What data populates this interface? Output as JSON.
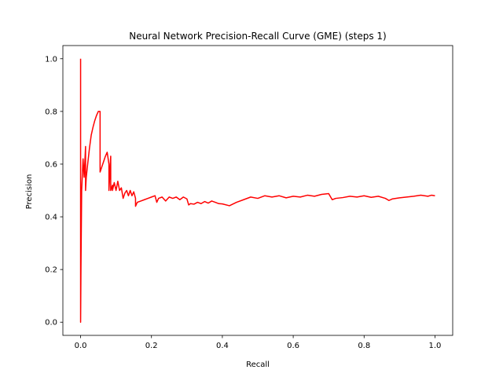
{
  "chart_data": {
    "type": "line",
    "title": "Neural Network Precision-Recall Curve (GME) (steps 1)",
    "xlabel": "Recall",
    "ylabel": "Precision",
    "xlim": [
      -0.05,
      1.05
    ],
    "ylim": [
      -0.05,
      1.05
    ],
    "xticks": [
      0.0,
      0.2,
      0.4,
      0.6,
      0.8,
      1.0
    ],
    "xtick_labels": [
      "0.0",
      "0.2",
      "0.4",
      "0.6",
      "0.8",
      "1.0"
    ],
    "yticks": [
      0.0,
      0.2,
      0.4,
      0.6,
      0.8,
      1.0
    ],
    "ytick_labels": [
      "0.0",
      "0.2",
      "0.4",
      "0.6",
      "0.8",
      "1.0"
    ],
    "grid": false,
    "series": [
      {
        "color": "#ff0000",
        "x": [
          0.0,
          0.0,
          0.001,
          0.003,
          0.007,
          0.01,
          0.014,
          0.014,
          0.016,
          0.02,
          0.025,
          0.03,
          0.035,
          0.04,
          0.045,
          0.05,
          0.055,
          0.055,
          0.06,
          0.065,
          0.07,
          0.075,
          0.08,
          0.08,
          0.085,
          0.085,
          0.09,
          0.09,
          0.095,
          0.1,
          0.105,
          0.11,
          0.115,
          0.12,
          0.125,
          0.13,
          0.135,
          0.14,
          0.145,
          0.15,
          0.155,
          0.155,
          0.16,
          0.17,
          0.18,
          0.19,
          0.2,
          0.21,
          0.215,
          0.22,
          0.23,
          0.24,
          0.25,
          0.26,
          0.27,
          0.28,
          0.29,
          0.3,
          0.305,
          0.31,
          0.32,
          0.33,
          0.34,
          0.35,
          0.36,
          0.37,
          0.38,
          0.39,
          0.4,
          0.42,
          0.44,
          0.46,
          0.48,
          0.5,
          0.52,
          0.54,
          0.56,
          0.58,
          0.6,
          0.62,
          0.64,
          0.66,
          0.68,
          0.7,
          0.71,
          0.72,
          0.74,
          0.76,
          0.78,
          0.8,
          0.82,
          0.84,
          0.86,
          0.87,
          0.88,
          0.9,
          0.92,
          0.94,
          0.96,
          0.98,
          0.99,
          1.0
        ],
        "y": [
          1.0,
          0.0,
          0.2,
          0.5,
          0.62,
          0.55,
          0.667,
          0.5,
          0.55,
          0.6,
          0.66,
          0.71,
          0.74,
          0.765,
          0.785,
          0.8,
          0.8,
          0.57,
          0.59,
          0.61,
          0.63,
          0.645,
          0.6,
          0.5,
          0.63,
          0.5,
          0.52,
          0.5,
          0.53,
          0.5,
          0.535,
          0.5,
          0.51,
          0.47,
          0.49,
          0.5,
          0.48,
          0.5,
          0.48,
          0.495,
          0.47,
          0.44,
          0.455,
          0.46,
          0.465,
          0.47,
          0.475,
          0.48,
          0.455,
          0.47,
          0.475,
          0.46,
          0.475,
          0.47,
          0.475,
          0.465,
          0.475,
          0.468,
          0.445,
          0.45,
          0.448,
          0.455,
          0.45,
          0.458,
          0.452,
          0.46,
          0.455,
          0.45,
          0.449,
          0.442,
          0.455,
          0.465,
          0.475,
          0.47,
          0.48,
          0.475,
          0.48,
          0.472,
          0.478,
          0.475,
          0.482,
          0.478,
          0.485,
          0.488,
          0.465,
          0.47,
          0.473,
          0.478,
          0.475,
          0.48,
          0.474,
          0.478,
          0.47,
          0.462,
          0.468,
          0.472,
          0.475,
          0.478,
          0.482,
          0.478,
          0.482,
          0.48
        ]
      }
    ]
  }
}
